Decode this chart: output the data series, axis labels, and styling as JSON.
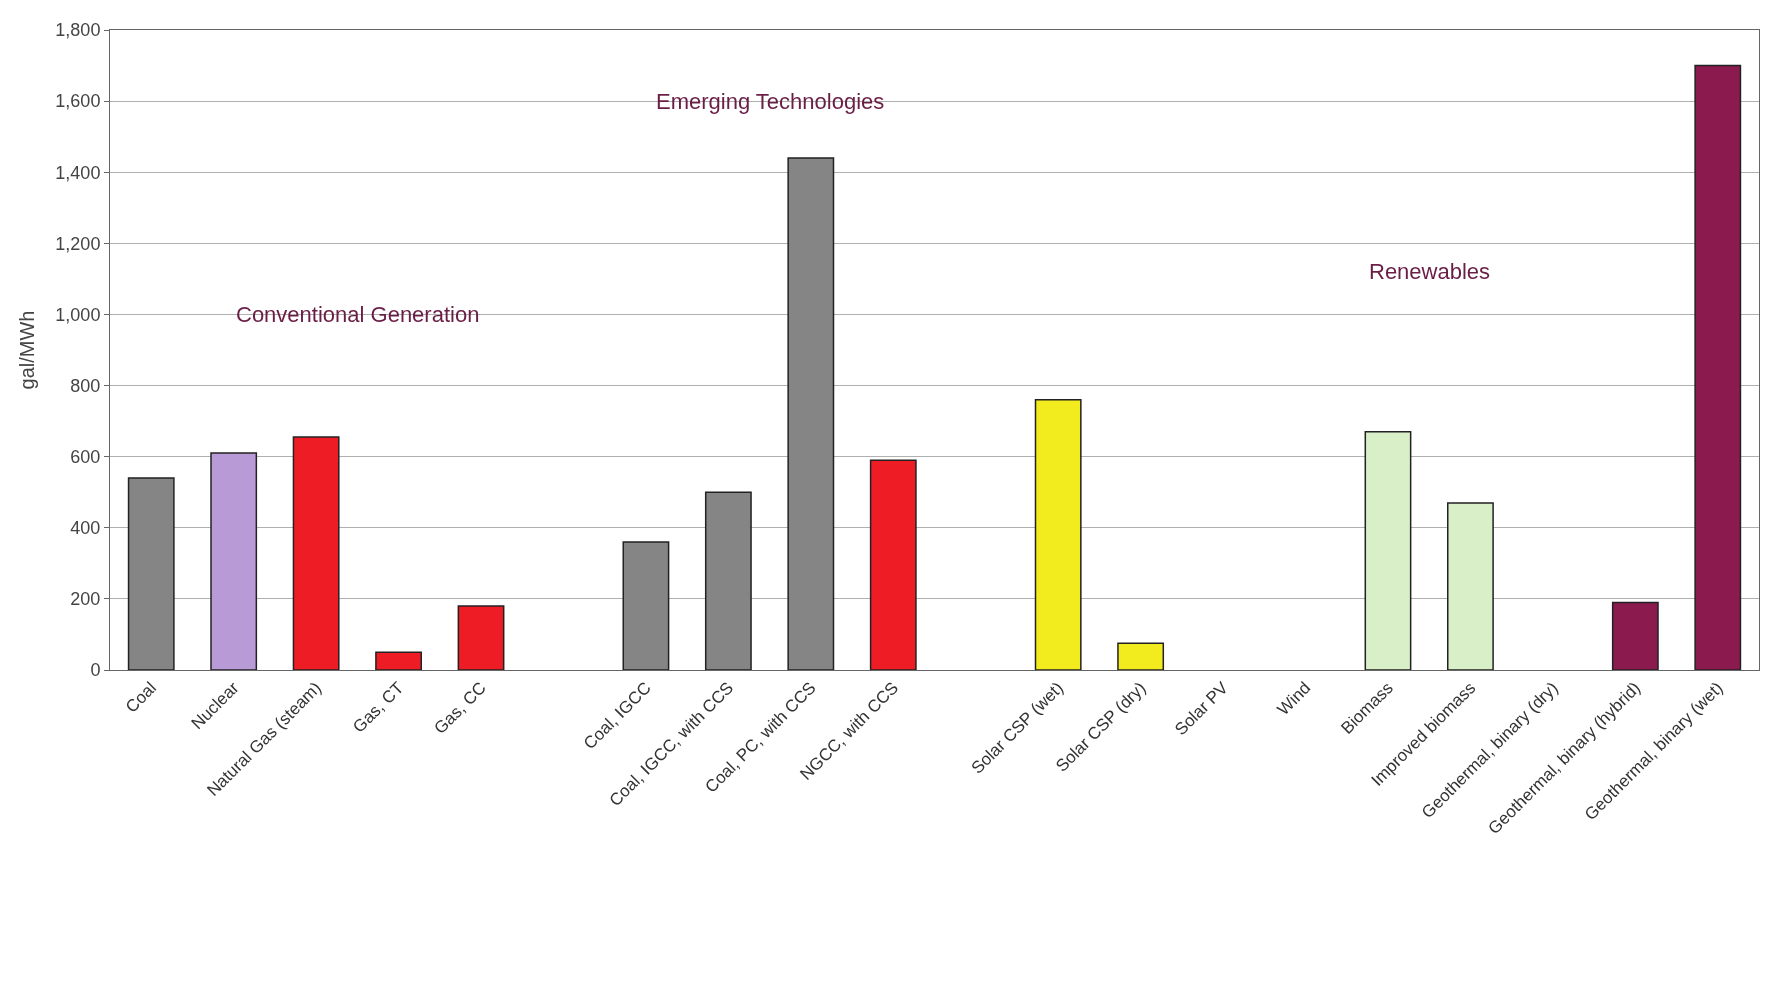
{
  "chart_data": {
    "type": "bar",
    "ylabel": "gal/MWh",
    "categories": [
      "Coal",
      "Nuclear",
      "Natural Gas (steam)",
      "Gas, CT",
      "Gas, CC",
      null,
      "Coal, IGCC",
      "Coal, IGCC, with CCS",
      "Coal, PC, with CCS",
      "NGCC, with CCS",
      null,
      "Solar CSP (wet)",
      "Solar CSP (dry)",
      "Solar PV",
      "Wind",
      "Biomass",
      "Improved biomass",
      "Geothermal, binary (dry)",
      "Geothermal, binary (hybrid)",
      "Geothermal, binary (wet)"
    ],
    "values": [
      540,
      610,
      655,
      50,
      180,
      null,
      360,
      500,
      1440,
      590,
      null,
      760,
      75,
      null,
      null,
      670,
      470,
      null,
      190,
      1700
    ],
    "colors": [
      "#858585",
      "#b79ad6",
      "#ee1c24",
      "#ee1c24",
      "#ee1c24",
      "#ffffff",
      "#858585",
      "#858585",
      "#858585",
      "#ee1c24",
      "#ffffff",
      "#f2ec1e",
      "#f2ec1e",
      "#f2ec1e",
      "#d8efc8",
      "#d8efc8",
      "#d8efc8",
      "#8b1a4f",
      "#8b1a4f",
      "#8b1a4f"
    ],
    "ylim": [
      0,
      1800
    ],
    "yticks": [
      {
        "value": 0,
        "label": "0"
      },
      {
        "value": 200,
        "label": "200"
      },
      {
        "value": 400,
        "label": "400"
      },
      {
        "value": 600,
        "label": "600"
      },
      {
        "value": 800,
        "label": "800"
      },
      {
        "value": 1000,
        "label": "1,000"
      },
      {
        "value": 1200,
        "label": "1,200"
      },
      {
        "value": 1400,
        "label": "1,400"
      },
      {
        "value": 1600,
        "label": "1,600"
      },
      {
        "value": 1800,
        "label": "1,800"
      }
    ],
    "grid": "y",
    "annotations": [
      "Conventional Generation",
      "Emerging Technologies",
      "Renewables"
    ]
  }
}
